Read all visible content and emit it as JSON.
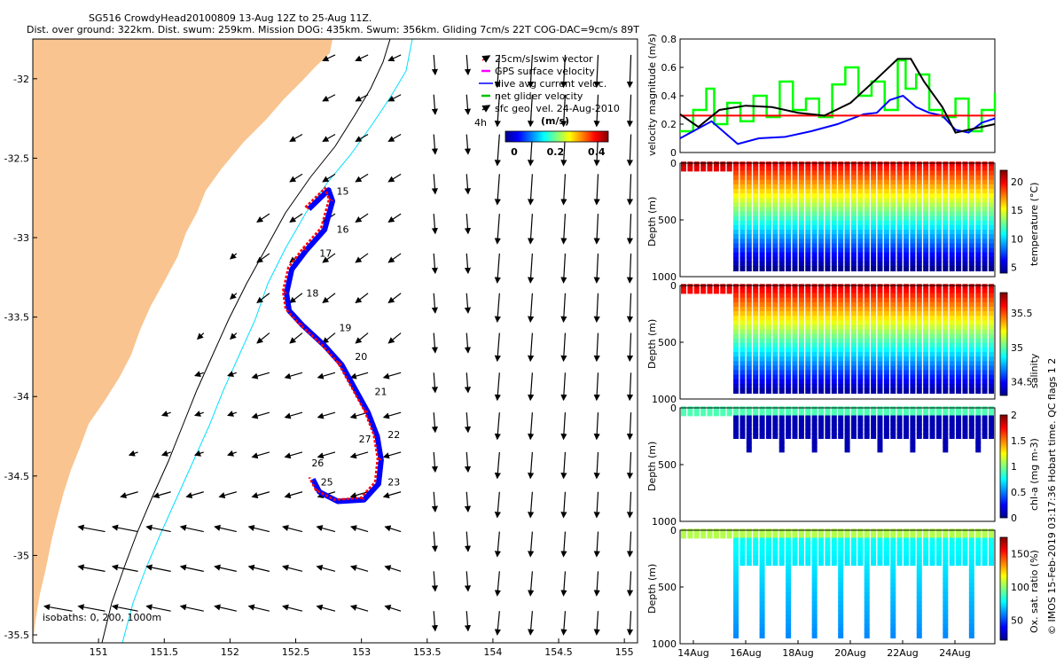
{
  "title_line1": "SG516 CrowdyHead20100809 13-Aug 12Z to 25-Aug 11Z.",
  "title_line2": "Dist. over ground: 322km. Dist. swum: 259km. Mission DOG: 435km. Swum: 356km. Gliding 7cm/s 22T COG-DAC=9cm/s 89T",
  "side_label": "© IMOS 15-Feb-2019 03:17:36 Hobart time. QC flags 1  2",
  "colors": {
    "land": "#f9c48f",
    "isobath200": "#000000",
    "isobath1000": "#00e0ff",
    "track_red": "#ff0000",
    "track_blue": "#0000ff",
    "line_black": "#000000",
    "line_red": "#ff0000",
    "line_blue": "#0000ff",
    "line_green": "#00ff00"
  },
  "chart_data": [
    {
      "id": "map",
      "type": "scatter",
      "title": "Glider track and surface velocity vectors",
      "xlim": [
        150.5,
        155.1
      ],
      "ylim": [
        -35.55,
        -31.75
      ],
      "xticks": [
        "151",
        "151.5",
        "152",
        "152.5",
        "153",
        "153.5",
        "154",
        "154.5",
        "155"
      ],
      "yticks": [
        "-32",
        "-32.5",
        "-33",
        "-33.5",
        "-34",
        "-34.5",
        "-35",
        "-35.5"
      ],
      "legend": [
        {
          "label": "25cm/s swim vector",
          "color": "#ff0000",
          "marker": "arrow"
        },
        {
          "label": "GPS surface velocity",
          "color": "#ff00ff",
          "marker": "dash"
        },
        {
          "label": "dive avg current veloc.",
          "color": "#0000ff",
          "marker": "line"
        },
        {
          "label": "net glider velocity",
          "color": "#00c000",
          "marker": "dash"
        },
        {
          "label": "sfc geo. vel. 24-Aug-2010",
          "color": "#000000",
          "marker": "arrow"
        }
      ],
      "legend_extra": "4h",
      "colorbar": {
        "label": "(m/s)",
        "ticks": [
          "0",
          "0.2",
          "0.4"
        ],
        "range": [
          0,
          0.5
        ]
      },
      "isobath_label": "isobaths: 0, 200, 1000m",
      "track": [
        [
          152.6,
          -32.82
        ],
        [
          152.75,
          -32.7
        ],
        [
          152.78,
          -32.77
        ],
        [
          152.72,
          -32.95
        ],
        [
          152.58,
          -33.08
        ],
        [
          152.47,
          -33.2
        ],
        [
          152.43,
          -33.35
        ],
        [
          152.45,
          -33.46
        ],
        [
          152.55,
          -33.55
        ],
        [
          152.72,
          -33.68
        ],
        [
          152.85,
          -33.8
        ],
        [
          152.95,
          -33.95
        ],
        [
          153.05,
          -34.1
        ],
        [
          153.12,
          -34.25
        ],
        [
          153.15,
          -34.4
        ],
        [
          153.13,
          -34.55
        ],
        [
          153.02,
          -34.65
        ],
        [
          152.82,
          -34.66
        ],
        [
          152.68,
          -34.6
        ],
        [
          152.63,
          -34.52
        ]
      ],
      "day_labels": [
        {
          "t": "15",
          "lon": 152.81,
          "lat": -32.73
        },
        {
          "t": "16",
          "lon": 152.81,
          "lat": -32.97
        },
        {
          "t": "17",
          "lon": 152.68,
          "lat": -33.12
        },
        {
          "t": "18",
          "lon": 152.58,
          "lat": -33.37
        },
        {
          "t": "19",
          "lon": 152.83,
          "lat": -33.59
        },
        {
          "t": "20",
          "lon": 152.95,
          "lat": -33.77
        },
        {
          "t": "21",
          "lon": 153.1,
          "lat": -33.99
        },
        {
          "t": "22",
          "lon": 153.2,
          "lat": -34.26
        },
        {
          "t": "23",
          "lon": 153.2,
          "lat": -34.56
        },
        {
          "t": "25",
          "lon": 152.69,
          "lat": -34.56
        },
        {
          "t": "26",
          "lon": 152.62,
          "lat": -34.44
        },
        {
          "t": "27",
          "lon": 152.98,
          "lat": -34.29
        }
      ]
    },
    {
      "id": "velocity",
      "type": "line",
      "ylabel": "velocity magnitude (m/s)",
      "ylim": [
        0,
        0.8
      ],
      "yticks": [
        "0",
        "0.2",
        "0.4",
        "0.6",
        "0.8"
      ],
      "xlim": [
        0,
        12
      ],
      "series": [
        {
          "name": "black",
          "color": "#000000",
          "x": [
            0,
            0.7,
            1.5,
            2.5,
            3.5,
            4.5,
            5.5,
            6.5,
            7.5,
            8.3,
            8.8,
            9.3,
            10,
            10.5,
            11,
            12
          ],
          "y": [
            0.27,
            0.18,
            0.3,
            0.33,
            0.32,
            0.28,
            0.26,
            0.35,
            0.52,
            0.66,
            0.66,
            0.5,
            0.32,
            0.14,
            0.16,
            0.2
          ]
        },
        {
          "name": "red",
          "color": "#ff0000",
          "x": [
            0,
            12
          ],
          "y": [
            0.26,
            0.26
          ]
        },
        {
          "name": "blue",
          "color": "#0000ff",
          "x": [
            0,
            0.5,
            1.2,
            2.2,
            3,
            4,
            5,
            6,
            7,
            7.5,
            8,
            8.5,
            9,
            9.5,
            10,
            10.5,
            11,
            11.5,
            12
          ],
          "y": [
            0.1,
            0.15,
            0.22,
            0.06,
            0.1,
            0.11,
            0.15,
            0.2,
            0.27,
            0.28,
            0.37,
            0.4,
            0.32,
            0.28,
            0.26,
            0.16,
            0.14,
            0.21,
            0.24
          ]
        },
        {
          "name": "green",
          "color": "#00ff00",
          "x": [
            0,
            0.5,
            1,
            1.3,
            1.8,
            2.3,
            2.8,
            3.3,
            3.8,
            4.3,
            4.8,
            5.3,
            5.8,
            6.3,
            6.8,
            7.3,
            7.8,
            8.3,
            8.6,
            9,
            9.5,
            10,
            10.5,
            11,
            11.5,
            12
          ],
          "y": [
            0.15,
            0.3,
            0.45,
            0.2,
            0.35,
            0.22,
            0.4,
            0.25,
            0.5,
            0.3,
            0.38,
            0.25,
            0.48,
            0.6,
            0.4,
            0.5,
            0.3,
            0.65,
            0.45,
            0.55,
            0.3,
            0.25,
            0.38,
            0.15,
            0.3,
            0.42
          ]
        }
      ]
    },
    {
      "id": "temperature",
      "type": "heatmap",
      "ylabel": "Depth (m)",
      "ylim": [
        1000,
        0
      ],
      "yticks": [
        "0",
        "500",
        "1000"
      ],
      "clabel": "temperature (°C)",
      "cticks": [
        "5",
        "10",
        "15",
        "20"
      ],
      "crange": [
        4,
        22
      ]
    },
    {
      "id": "salinity",
      "type": "heatmap",
      "ylabel": "Depth (m)",
      "ylim": [
        1000,
        0
      ],
      "yticks": [
        "0",
        "500",
        "1000"
      ],
      "clabel": "salinity",
      "cticks": [
        "34.5",
        "35",
        "35.5"
      ],
      "crange": [
        34.3,
        35.8
      ]
    },
    {
      "id": "chla",
      "type": "heatmap",
      "ylabel": "Depth (m)",
      "ylim": [
        1000,
        0
      ],
      "yticks": [
        "0",
        "500",
        "1000"
      ],
      "clabel": "chl-a (mg m-3)",
      "cticks": [
        "0",
        "0.5",
        "1",
        "1.5",
        "2"
      ],
      "crange": [
        0,
        2
      ]
    },
    {
      "id": "oxygen",
      "type": "heatmap",
      "ylabel": "Depth (m)",
      "ylim": [
        1000,
        0
      ],
      "yticks": [
        "0",
        "500",
        "1000"
      ],
      "clabel": "Ox. sat. ratio (%)",
      "cticks": [
        "50",
        "100",
        "150"
      ],
      "crange": [
        20,
        175
      ],
      "xticks": [
        "14Aug",
        "16Aug",
        "18Aug",
        "20Aug",
        "22Aug",
        "24Aug"
      ]
    }
  ]
}
